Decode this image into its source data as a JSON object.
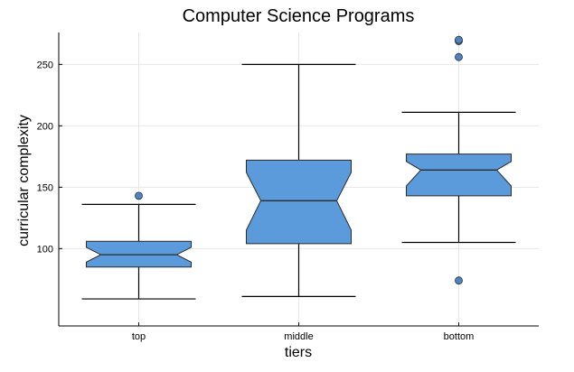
{
  "chart_data": {
    "type": "box",
    "title": "Computer Science Programs",
    "xlabel": "tiers",
    "ylabel": "curricular complexity",
    "categories": [
      "top",
      "middle",
      "bottom"
    ],
    "yticks": [
      100,
      150,
      200,
      250
    ],
    "ytick_labels": [
      "100",
      "150",
      "200",
      "250"
    ],
    "ylim": [
      37,
      276
    ],
    "grid": true,
    "notched": true,
    "box_color": "#5b9bdc",
    "outlier_color": "#4a84c4",
    "boxes": [
      {
        "name": "top",
        "whisker_low": 59,
        "q1": 85,
        "median": 95,
        "q3": 106,
        "whisker_high": 136,
        "notch_low": 89,
        "notch_high": 101,
        "outliers": [
          143
        ]
      },
      {
        "name": "middle",
        "whisker_low": 61,
        "q1": 104,
        "median": 139,
        "q3": 172,
        "whisker_high": 250,
        "notch_low": 115,
        "notch_high": 162,
        "outliers": []
      },
      {
        "name": "bottom",
        "whisker_low": 105,
        "q1": 143,
        "median": 164,
        "q3": 177,
        "whisker_high": 211,
        "notch_low": 151,
        "notch_high": 171,
        "outliers": [
          74,
          256,
          269,
          270
        ]
      }
    ]
  }
}
